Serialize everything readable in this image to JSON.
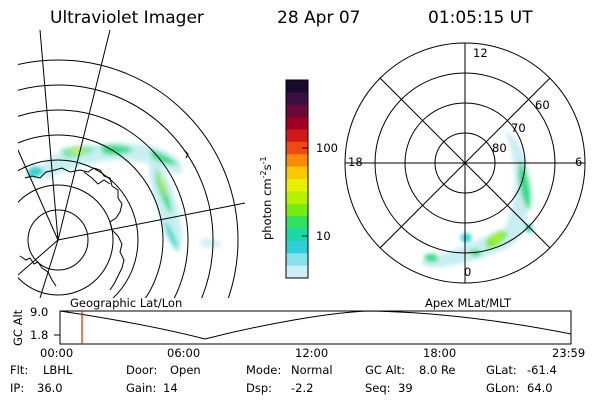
{
  "header": {
    "title": "Ultraviolet Imager",
    "date": "28 Apr 07",
    "time": "01:05:15 UT"
  },
  "colorbar": {
    "label": "photon cm",
    "label_sup1": "-2",
    "label_mid": "s",
    "label_sup2": "-1",
    "ticks": [
      "100",
      "10"
    ],
    "colors": [
      "#1a0a2e",
      "#3a0e42",
      "#6a0a3a",
      "#a00020",
      "#d01818",
      "#f04a10",
      "#f88a08",
      "#f8c800",
      "#e8f000",
      "#b8f000",
      "#78ec10",
      "#30e060",
      "#18d8a8",
      "#30d0d8",
      "#88e0ea",
      "#cdeef4"
    ]
  },
  "polar_map": {
    "mlt_labels": {
      "top": "12",
      "left": "18",
      "right": "6",
      "bottom": "0"
    },
    "lat_labels": [
      "60",
      "70",
      "80"
    ]
  },
  "timeline": {
    "left_title": "Geographic Lat/Lon",
    "right_title": "Apex MLat/MLT",
    "axis_label": "GC Alt",
    "y_ticks": [
      "9.0",
      "1.8"
    ],
    "x_ticks": [
      "00:00",
      "06:00",
      "12:00",
      "18:00",
      "23:59"
    ]
  },
  "info": {
    "row1": {
      "flt_label": "Flt:",
      "flt_value": "LBHL",
      "door_label": "Door:",
      "door_value": "Open",
      "mode_label": "Mode:",
      "mode_value": "Normal",
      "gcalt_label": "GC Alt:",
      "gcalt_value": "8.0 Re",
      "glat_label": "GLat:",
      "glat_value": "-61.4"
    },
    "row2": {
      "ip_label": "IP:",
      "ip_value": "36.0",
      "gain_label": "Gain:",
      "gain_value": "14",
      "dsp_label": "Dsp:",
      "dsp_value": "-2.2",
      "seq_label": "Seq:",
      "seq_value": "39",
      "glon_label": "GLon:",
      "glon_value": "64.0"
    }
  }
}
